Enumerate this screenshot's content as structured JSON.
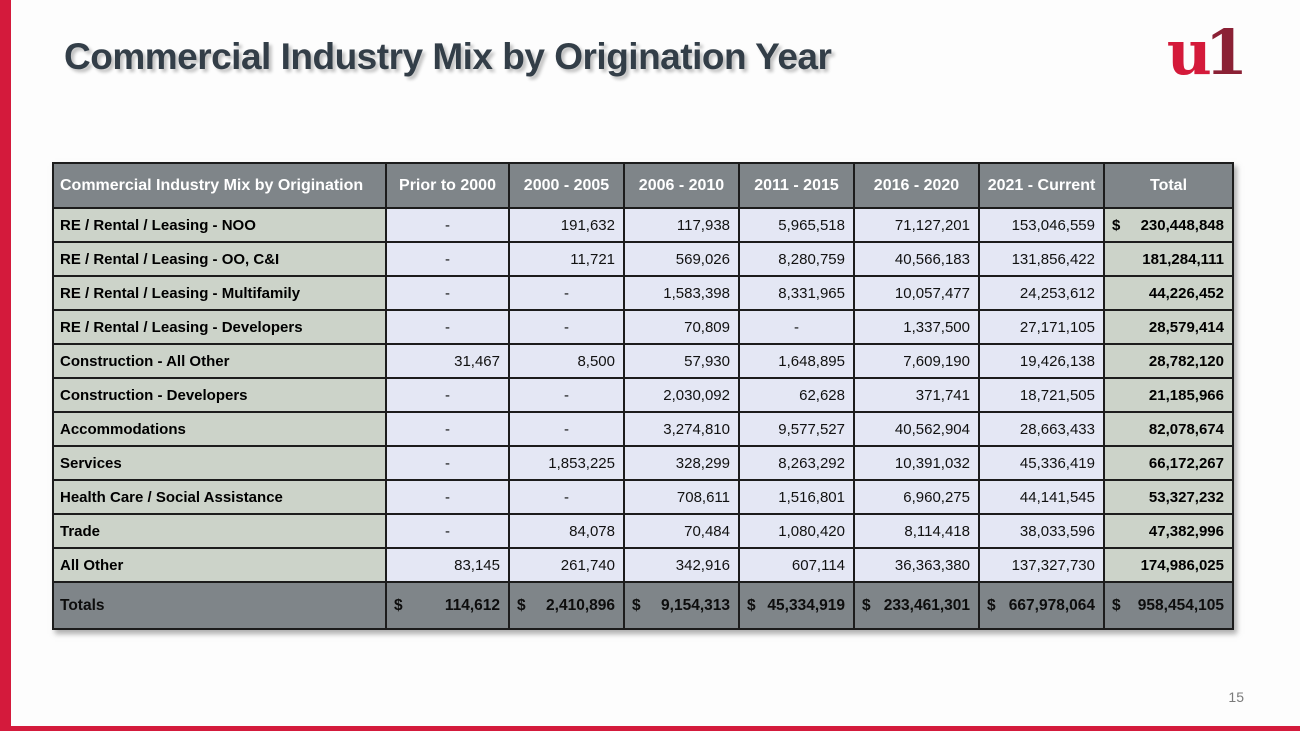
{
  "slide": {
    "title": "Commercial Industry Mix by Origination Year",
    "page_number": "15",
    "logo": {
      "letter_u": "u",
      "letter_one": "1"
    },
    "colors": {
      "accent_red": "#d41a3c",
      "logo_maroon": "#8b2135",
      "header_gray": "#7f8589",
      "label_green_gray": "#ccd3c9",
      "data_lavender": "#e4e7f4",
      "title_slate": "#333e48"
    }
  },
  "table": {
    "header": [
      "Commercial Industry Mix by Origination",
      "Prior to 2000",
      "2000 - 2005",
      "2006 - 2010",
      "2011 - 2015",
      "2016 - 2020",
      "2021 - Current",
      "Total"
    ],
    "rows": [
      {
        "label": "RE / Rental / Leasing - NOO",
        "values": [
          "-",
          "191,632",
          "117,938",
          "5,965,518",
          "71,127,201",
          "153,046,559"
        ],
        "total_prefix": "$",
        "total": "230,448,848"
      },
      {
        "label": "RE / Rental / Leasing - OO, C&I",
        "values": [
          "-",
          "11,721",
          "569,026",
          "8,280,759",
          "40,566,183",
          "131,856,422"
        ],
        "total_prefix": "",
        "total": "181,284,111"
      },
      {
        "label": "RE / Rental / Leasing - Multifamily",
        "values": [
          "-",
          "-",
          "1,583,398",
          "8,331,965",
          "10,057,477",
          "24,253,612"
        ],
        "total_prefix": "",
        "total": "44,226,452"
      },
      {
        "label": "RE / Rental / Leasing - Developers",
        "values": [
          "-",
          "-",
          "70,809",
          "-",
          "1,337,500",
          "27,171,105"
        ],
        "total_prefix": "",
        "total": "28,579,414"
      },
      {
        "label": "Construction - All Other",
        "values": [
          "31,467",
          "8,500",
          "57,930",
          "1,648,895",
          "7,609,190",
          "19,426,138"
        ],
        "total_prefix": "",
        "total": "28,782,120"
      },
      {
        "label": "Construction - Developers",
        "values": [
          "-",
          "-",
          "2,030,092",
          "62,628",
          "371,741",
          "18,721,505"
        ],
        "total_prefix": "",
        "total": "21,185,966"
      },
      {
        "label": "Accommodations",
        "values": [
          "-",
          "-",
          "3,274,810",
          "9,577,527",
          "40,562,904",
          "28,663,433"
        ],
        "total_prefix": "",
        "total": "82,078,674"
      },
      {
        "label": "Services",
        "values": [
          "-",
          "1,853,225",
          "328,299",
          "8,263,292",
          "10,391,032",
          "45,336,419"
        ],
        "total_prefix": "",
        "total": "66,172,267"
      },
      {
        "label": "Health Care / Social Assistance",
        "values": [
          "-",
          "-",
          "708,611",
          "1,516,801",
          "6,960,275",
          "44,141,545"
        ],
        "total_prefix": "",
        "total": "53,327,232"
      },
      {
        "label": "Trade",
        "values": [
          "-",
          "84,078",
          "70,484",
          "1,080,420",
          "8,114,418",
          "38,033,596"
        ],
        "total_prefix": "",
        "total": "47,382,996"
      },
      {
        "label": "All Other",
        "values": [
          "83,145",
          "261,740",
          "342,916",
          "607,114",
          "36,363,380",
          "137,327,730"
        ],
        "total_prefix": "",
        "total": "174,986,025"
      }
    ],
    "totals_row": {
      "label": "Totals",
      "currency_symbol": "$",
      "values": [
        "114,612",
        "2,410,896",
        "9,154,313",
        "45,334,919",
        "233,461,301",
        "667,978,064",
        "958,454,105"
      ]
    }
  }
}
